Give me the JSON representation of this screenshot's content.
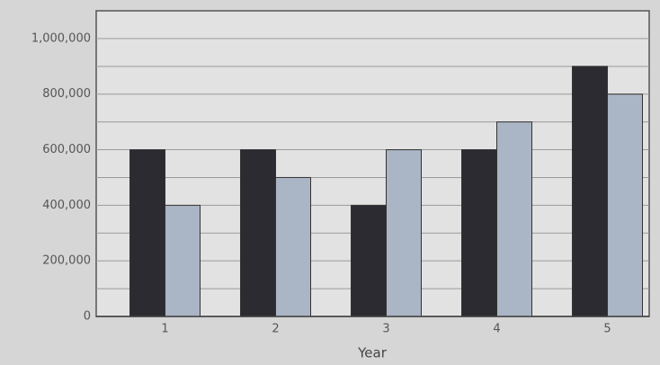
{
  "chart_data": {
    "type": "grouped_bar",
    "xlabel": "Year",
    "categories": [
      "1",
      "2",
      "3",
      "4",
      "5"
    ],
    "series": [
      {
        "color": "#2c2b31",
        "values": [
          600000,
          600000,
          400000,
          600000,
          900000
        ]
      },
      {
        "color": "#aab5c5",
        "values": [
          400000,
          500000,
          600000,
          700000,
          800000
        ]
      }
    ],
    "ylim": [
      0,
      1100000
    ],
    "yticks": [
      0,
      {
        "value": 200000,
        "label": "200,000"
      },
      {
        "value": 400000,
        "label": "400,000"
      },
      {
        "value": 600000,
        "label": "600,000"
      },
      {
        "value": 800000,
        "label": "800,000"
      },
      {
        "value": 1000000,
        "label": "1,000,000"
      }
    ],
    "minor_yticks": [
      100000,
      300000,
      500000,
      700000,
      900000
    ],
    "grid": true
  }
}
